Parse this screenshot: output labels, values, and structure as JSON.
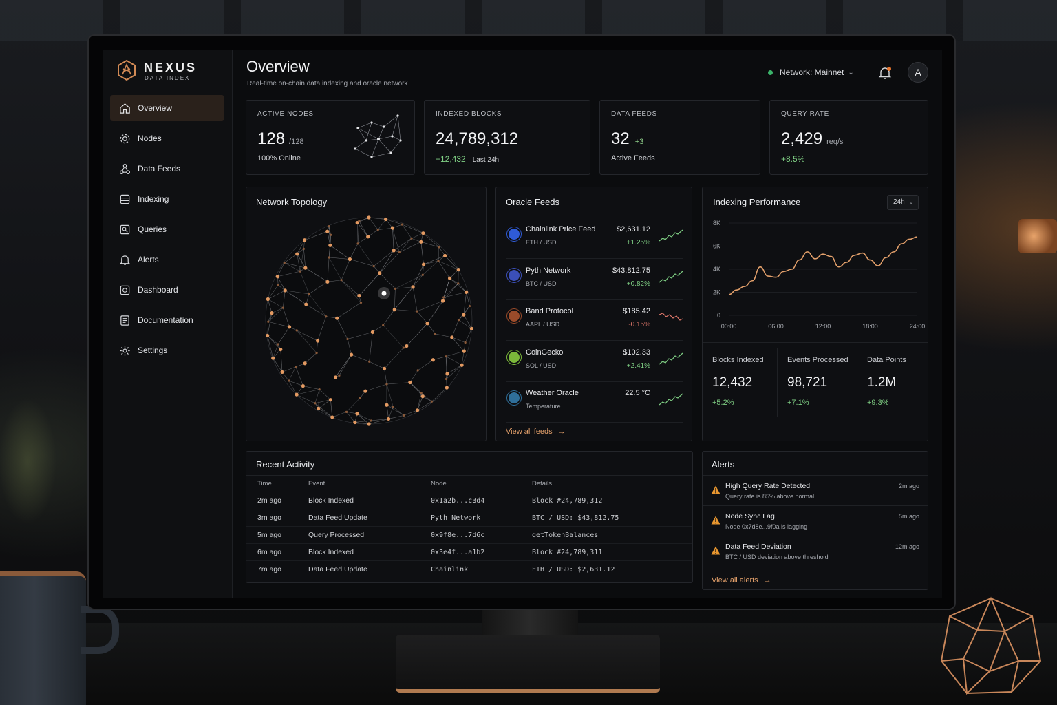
{
  "brand": {
    "name": "NEXUS",
    "sub": "DATA INDEX"
  },
  "sidebar": {
    "items": [
      {
        "label": "Overview",
        "icon": "home-icon",
        "active": true
      },
      {
        "label": "Nodes",
        "icon": "gear-icon"
      },
      {
        "label": "Data Feeds",
        "icon": "share-nodes-icon"
      },
      {
        "label": "Indexing",
        "icon": "database-icon"
      },
      {
        "label": "Queries",
        "icon": "query-icon"
      },
      {
        "label": "Alerts",
        "icon": "bell-icon"
      },
      {
        "label": "Dashboard",
        "icon": "dashboard-icon"
      },
      {
        "label": "Documentation",
        "icon": "document-icon"
      },
      {
        "label": "Settings",
        "icon": "settings-icon"
      }
    ]
  },
  "header": {
    "title": "Overview",
    "subtitle": "Real-time on-chain data indexing and oracle network",
    "network": "Network: Mainnet",
    "avatar": "A"
  },
  "stats": {
    "active_nodes": {
      "label": "ACTIVE NODES",
      "value": "128",
      "unit": "/128",
      "foot": "100% Online"
    },
    "indexed_blocks": {
      "label": "INDEXED BLOCKS",
      "value": "24,789,312",
      "delta": "+12,432",
      "foot": "Last 24h"
    },
    "data_feeds": {
      "label": "DATA FEEDS",
      "value": "32",
      "delta": "+3",
      "foot": "Active Feeds"
    },
    "query_rate": {
      "label": "QUERY RATE",
      "value": "2,429",
      "unit": "req/s",
      "foot": "+8.5%"
    }
  },
  "topology": {
    "title": "Network Topology"
  },
  "oracle": {
    "title": "Oracle Feeds",
    "feeds": [
      {
        "name": "Chainlink Price Feed",
        "pair": "ETH / USD",
        "price": "$2,631.12",
        "change": "+1.25%",
        "up": true,
        "color": "#2f5bd6"
      },
      {
        "name": "Pyth Network",
        "pair": "BTC / USD",
        "price": "$43,812.75",
        "change": "+0.82%",
        "up": true,
        "color": "#3b4fb8"
      },
      {
        "name": "Band Protocol",
        "pair": "AAPL / USD",
        "price": "$185.42",
        "change": "-0.15%",
        "up": false,
        "color": "#9a4b2a"
      },
      {
        "name": "CoinGecko",
        "pair": "SOL / USD",
        "price": "$102.33",
        "change": "+2.41%",
        "up": true,
        "color": "#7bb83a"
      },
      {
        "name": "Weather Oracle",
        "pair": "Temperature",
        "price": "22.5 °C",
        "change": "",
        "up": true,
        "color": "#2f6f9a"
      }
    ],
    "view_all": "View all feeds"
  },
  "performance": {
    "title": "Indexing Performance",
    "range": "24h",
    "metrics": [
      {
        "label": "Blocks Indexed",
        "value": "12,432",
        "delta": "+5.2%"
      },
      {
        "label": "Events Processed",
        "value": "98,721",
        "delta": "+7.1%"
      },
      {
        "label": "Data Points",
        "value": "1.2M",
        "delta": "+9.3%"
      }
    ]
  },
  "chart_data": {
    "type": "line",
    "x_ticks": [
      "00:00",
      "06:00",
      "12:00",
      "18:00",
      "24:00"
    ],
    "y_ticks": [
      "0",
      "2K",
      "4K",
      "6K",
      "8K"
    ],
    "ylim": [
      0,
      8000
    ],
    "xlim": [
      0,
      24
    ],
    "color": "#e3a06b",
    "series": [
      {
        "x": [
          0,
          1,
          2,
          3,
          4,
          5,
          6,
          7,
          8,
          9,
          10,
          11,
          12,
          13,
          14,
          15,
          16,
          17,
          18,
          19,
          20,
          21,
          22,
          23,
          24
        ],
        "y": [
          1800,
          2200,
          2500,
          3000,
          4200,
          3400,
          3300,
          3800,
          4000,
          4800,
          5500,
          4900,
          5300,
          5100,
          4200,
          4600,
          5200,
          5400,
          4800,
          4300,
          5000,
          5500,
          6200,
          6600,
          6800
        ]
      }
    ]
  },
  "activity": {
    "title": "Recent Activity",
    "columns": [
      "Time",
      "Event",
      "Node",
      "Details"
    ],
    "rows": [
      [
        "2m ago",
        "Block Indexed",
        "0x1a2b...c3d4",
        "Block #24,789,312"
      ],
      [
        "3m ago",
        "Data Feed Update",
        "Pyth Network",
        "BTC / USD: $43,812.75"
      ],
      [
        "5m ago",
        "Query Processed",
        "0x9f8e...7d6c",
        "getTokenBalances"
      ],
      [
        "6m ago",
        "Block Indexed",
        "0x3e4f...a1b2",
        "Block #24,789,311"
      ],
      [
        "7m ago",
        "Data Feed Update",
        "Chainlink",
        "ETH / USD: $2,631.12"
      ]
    ]
  },
  "alerts": {
    "title": "Alerts",
    "items": [
      {
        "title": "High Query Rate Detected",
        "desc": "Query rate is 85% above normal",
        "time": "2m ago"
      },
      {
        "title": "Node Sync Lag",
        "desc": "Node 0x7d8e...9f0a is lagging",
        "time": "5m ago"
      },
      {
        "title": "Data Feed Deviation",
        "desc": "BTC / USD deviation above threshold",
        "time": "12m ago"
      }
    ],
    "view_all": "View all alerts"
  },
  "colors": {
    "accent": "#e3a06b",
    "positive": "#7fcf84",
    "negative": "#e0776a",
    "warning": "#e8962f"
  }
}
